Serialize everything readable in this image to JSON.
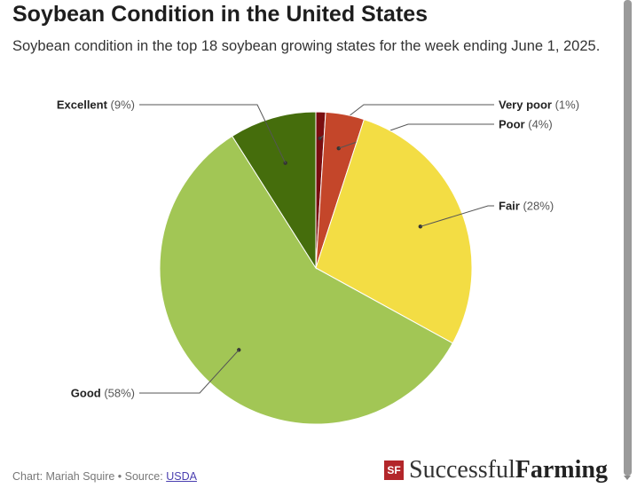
{
  "title": "Soybean Condition in the United States",
  "subtitle": "Soybean condition in the top 18 soybean growing states for the week ending June 1, 2025.",
  "footer": {
    "credit": "Chart: Mariah Squire • Source: ",
    "source_link": "USDA"
  },
  "logo": {
    "mark": "SF",
    "word1": "Successful",
    "word2": "Farming"
  },
  "chart_data": {
    "type": "pie",
    "title": "Soybean Condition in the United States",
    "slices": [
      {
        "label": "Very poor",
        "value": 1,
        "display": "(1%)",
        "color": "#7a0e10"
      },
      {
        "label": "Poor",
        "value": 4,
        "display": "(4%)",
        "color": "#c4462a"
      },
      {
        "label": "Fair",
        "value": 28,
        "display": "(28%)",
        "color": "#f3dd44"
      },
      {
        "label": "Good",
        "value": 58,
        "display": "(58%)",
        "color": "#a2c655"
      },
      {
        "label": "Excellent",
        "value": 9,
        "display": "(9%)",
        "color": "#456d0c"
      }
    ]
  }
}
